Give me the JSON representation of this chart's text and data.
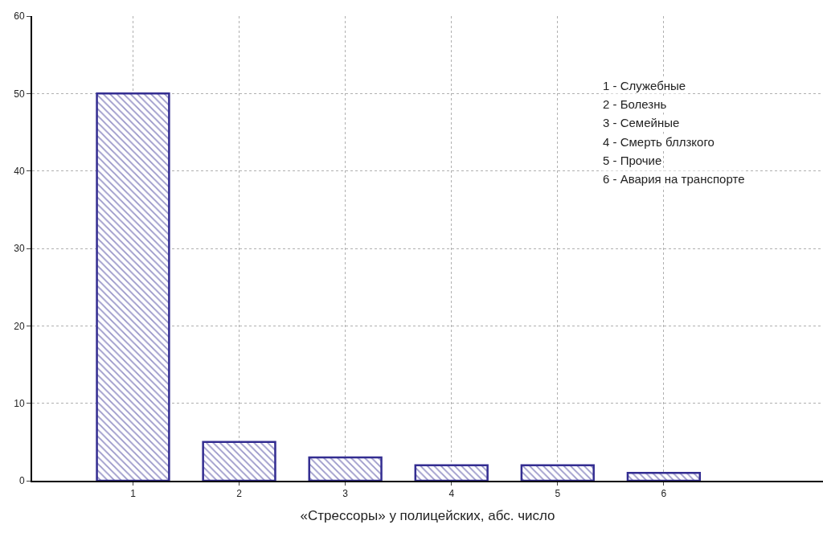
{
  "chart_data": {
    "type": "bar",
    "xlabel": "«Стрессоры» у полицейских, абс. число",
    "categories": [
      "1",
      "2",
      "3",
      "4",
      "5",
      "6"
    ],
    "values": [
      50,
      5,
      3,
      2,
      2,
      1
    ],
    "color": "#332d91",
    "ylim": [
      0,
      60
    ],
    "yticks": [
      0,
      10,
      20,
      30,
      40,
      50,
      60
    ],
    "grid": true,
    "line_style": "dotted",
    "annotations": [
      "1 - Служебные",
      "2 - Болезнь",
      "3 - Семейные",
      "4 - Смерть бллзкого",
      "5 - Прочие",
      "6 - Авария на транспорте"
    ]
  }
}
